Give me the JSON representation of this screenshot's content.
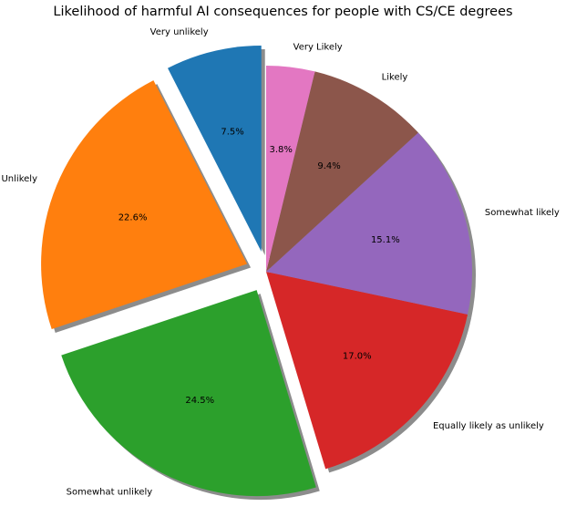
{
  "chart_data": {
    "type": "pie",
    "title": "Likelihood of harmful AI consequences for people with CS/CE degrees",
    "slices": [
      {
        "label": "Very unlikely",
        "value": 7.5,
        "pct_label": "7.5%",
        "color": "#1f77b4",
        "exploded": true
      },
      {
        "label": "Unlikely",
        "value": 22.6,
        "pct_label": "22.6%",
        "color": "#ff7f0e",
        "exploded": true
      },
      {
        "label": "Somewhat unlikely",
        "value": 24.5,
        "pct_label": "24.5%",
        "color": "#2ca02c",
        "exploded": true
      },
      {
        "label": "Equally likely as unlikely",
        "value": 17.0,
        "pct_label": "17.0%",
        "color": "#d62728",
        "exploded": false
      },
      {
        "label": "Somewhat likely",
        "value": 15.1,
        "pct_label": "15.1%",
        "color": "#9467bd",
        "exploded": false
      },
      {
        "label": "Likely",
        "value": 9.4,
        "pct_label": "9.4%",
        "color": "#8c564b",
        "exploded": false
      },
      {
        "label": "Very Likely",
        "value": 3.8,
        "pct_label": "3.8%",
        "color": "#e377c2",
        "exploded": false
      }
    ],
    "start_angle_deg": 90,
    "direction": "counterclockwise",
    "shadow": true
  }
}
